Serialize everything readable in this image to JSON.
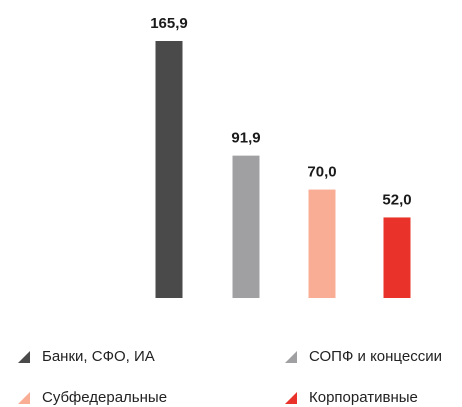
{
  "chart_data": {
    "type": "bar",
    "series": [
      {
        "name": "Банки, СФО, ИА",
        "color": "#4a4a4a",
        "values": [
          165.9
        ],
        "value_labels": [
          "165,9"
        ]
      },
      {
        "name": "СОПФ и концессии",
        "color": "#a0a0a2",
        "values": [
          91.9
        ],
        "value_labels": [
          "91,9"
        ]
      },
      {
        "name": "Субфедеральные",
        "color": "#f9ad94",
        "values": [
          70.0
        ],
        "value_labels": [
          "70,0"
        ]
      },
      {
        "name": "Корпоративные",
        "color": "#e8322a",
        "values": [
          52.0
        ],
        "value_labels": [
          "52,0"
        ]
      }
    ]
  }
}
